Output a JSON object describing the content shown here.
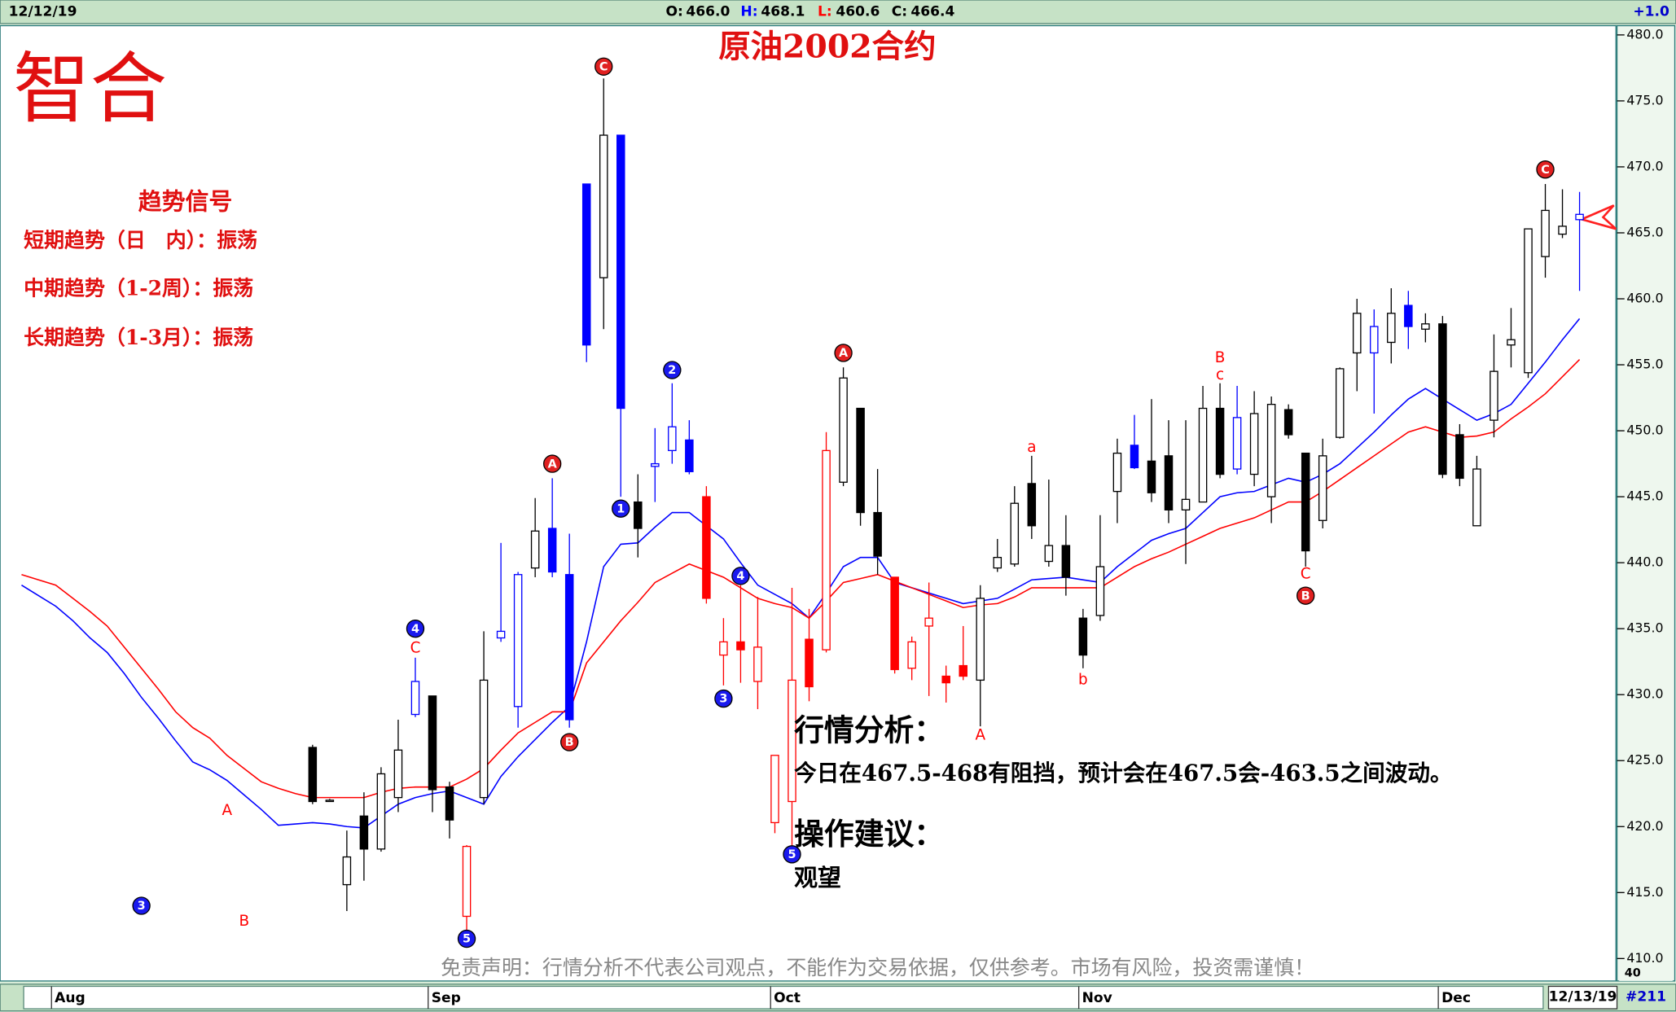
{
  "header": {
    "date": "12/12/19",
    "open_label": "O:",
    "open": "466.0",
    "high_label": "H:",
    "high": "468.1",
    "low_label": "L:",
    "low": "460.6",
    "close_label": "C:",
    "close": "466.4",
    "change": "+1.0"
  },
  "footer": {
    "date": "12/13/19",
    "bars": "#211",
    "corner": "40"
  },
  "logo": "智合",
  "trend_panel": {
    "title": "趋势信号",
    "rows": [
      "短期趋势（日　内）：振荡",
      "中期趋势（1-2周）：振荡",
      "长期趋势（1-3月）：振荡"
    ]
  },
  "analysis": {
    "heading": "行情分析：",
    "text": "今日在467.5-468有阻挡，预计会在467.5会-463.5之间波动。",
    "advice_heading": "操作建议：",
    "advice": "观望"
  },
  "disclaimer": "免责声明：行情分析不代表公司观点，不能作为交易依据，仅供参考。市场有风险，投资需谨慎！",
  "chart_data": {
    "type": "candlestick",
    "title": "原油2002合约",
    "categories": [
      null,
      null,
      "Aug",
      null,
      null,
      null,
      null,
      null,
      null,
      null,
      null,
      null,
      null,
      null,
      null,
      null,
      null,
      null,
      null,
      null,
      null,
      null,
      null,
      null,
      "Sep",
      null,
      null,
      null,
      null,
      null,
      null,
      null,
      null,
      null,
      null,
      null,
      null,
      null,
      null,
      null,
      null,
      null,
      null,
      null,
      "Oct",
      null,
      null,
      null,
      null,
      null,
      null,
      null,
      null,
      null,
      null,
      null,
      null,
      null,
      null,
      null,
      null,
      null,
      "Nov",
      null,
      null,
      null,
      null,
      null,
      null,
      null,
      null,
      null,
      null,
      null,
      null,
      null,
      null,
      null,
      null,
      null,
      null,
      null,
      null,
      "Dec",
      null,
      null,
      null,
      null,
      null,
      null,
      null,
      null
    ],
    "open": [
      null,
      null,
      null,
      null,
      null,
      null,
      null,
      null,
      null,
      null,
      null,
      null,
      null,
      null,
      null,
      null,
      null,
      426.0,
      422.0,
      415.6,
      420.8,
      418.3,
      422.2,
      428.5,
      429.9,
      423.0,
      413.2,
      422.2,
      434.3,
      429.1,
      439.6,
      442.6,
      439.1,
      468.7,
      461.6,
      472.4,
      444.6,
      447.3,
      448.5,
      449.3,
      445.0,
      433.0,
      434.0,
      431.0,
      420.3,
      421.9,
      434.2,
      433.4,
      446.1,
      451.7,
      443.8,
      438.9,
      432.0,
      435.2,
      431.4,
      432.2,
      431.1,
      439.6,
      439.9,
      446.0,
      440.1,
      441.3,
      435.8,
      436.0,
      445.4,
      448.9,
      447.7,
      448.1,
      444.0,
      444.6,
      451.7,
      447.1,
      446.7,
      445.0,
      451.6,
      448.3,
      443.2,
      449.5,
      455.9,
      455.9,
      456.7,
      459.5,
      457.7,
      458.1,
      449.7,
      442.8,
      450.8,
      456.5,
      454.4,
      463.2,
      464.9,
      466.0
    ],
    "high": [
      null,
      null,
      null,
      null,
      null,
      null,
      null,
      null,
      null,
      null,
      null,
      null,
      null,
      null,
      null,
      null,
      null,
      426.2,
      422.1,
      419.7,
      422.6,
      424.5,
      428.1,
      432.8,
      429.9,
      423.4,
      418.6,
      434.8,
      441.5,
      439.3,
      444.9,
      446.4,
      442.2,
      468.7,
      476.7,
      472.4,
      446.7,
      450.2,
      453.6,
      450.8,
      445.8,
      435.8,
      438.3,
      437.4,
      425.4,
      438.1,
      436.5,
      449.9,
      454.8,
      451.7,
      447.1,
      438.9,
      434.4,
      438.5,
      432.2,
      435.2,
      438.3,
      441.8,
      445.8,
      448.1,
      446.3,
      443.6,
      436.5,
      443.6,
      449.4,
      451.2,
      452.4,
      450.8,
      450.8,
      453.4,
      453.6,
      453.4,
      453.0,
      452.6,
      452.0,
      448.3,
      449.4,
      454.8,
      460.0,
      459.2,
      460.8,
      460.6,
      458.9,
      458.7,
      450.5,
      448.1,
      457.3,
      459.3,
      465.3,
      468.7,
      468.3,
      468.1
    ],
    "low": [
      null,
      null,
      null,
      null,
      null,
      null,
      null,
      null,
      null,
      null,
      null,
      null,
      null,
      null,
      null,
      null,
      null,
      421.7,
      421.9,
      413.6,
      415.9,
      418.1,
      421.1,
      428.3,
      421.1,
      419.1,
      412.1,
      421.7,
      434.0,
      427.5,
      438.9,
      438.9,
      427.5,
      455.2,
      457.7,
      445.0,
      440.4,
      444.6,
      447.5,
      446.7,
      436.9,
      430.7,
      430.9,
      428.9,
      419.5,
      418.1,
      429.5,
      433.2,
      445.8,
      442.8,
      439.1,
      431.6,
      431.1,
      429.9,
      429.4,
      431.1,
      427.6,
      439.3,
      439.7,
      441.8,
      439.7,
      437.5,
      432.0,
      435.6,
      443.0,
      447.1,
      444.6,
      443.0,
      439.9,
      444.6,
      446.4,
      446.7,
      445.8,
      443.0,
      449.4,
      439.7,
      442.6,
      449.4,
      453.0,
      451.3,
      455.1,
      456.2,
      456.7,
      446.4,
      445.8,
      442.8,
      449.5,
      454.8,
      454.0,
      461.6,
      464.6,
      460.6
    ],
    "close": [
      null,
      null,
      null,
      null,
      null,
      null,
      null,
      null,
      null,
      null,
      null,
      null,
      null,
      null,
      null,
      null,
      null,
      421.9,
      422.0,
      417.7,
      418.3,
      424.0,
      425.8,
      431.0,
      422.8,
      420.5,
      418.5,
      431.1,
      434.8,
      439.1,
      442.4,
      439.3,
      428.1,
      456.5,
      472.4,
      451.7,
      442.6,
      447.5,
      450.3,
      446.9,
      437.3,
      434.0,
      433.4,
      433.6,
      425.4,
      431.1,
      430.6,
      448.5,
      454.0,
      443.8,
      440.5,
      431.9,
      434.0,
      435.8,
      430.9,
      431.4,
      437.3,
      440.4,
      444.5,
      442.8,
      441.3,
      438.9,
      433.0,
      439.7,
      448.3,
      447.2,
      445.3,
      444.0,
      444.8,
      451.7,
      446.7,
      451.0,
      451.3,
      452.0,
      449.7,
      440.9,
      448.1,
      454.7,
      458.9,
      457.9,
      458.9,
      457.9,
      458.1,
      446.7,
      446.4,
      447.1,
      454.5,
      456.9,
      465.3,
      466.7,
      465.5,
      466.4
    ],
    "colors": [
      null,
      null,
      null,
      null,
      null,
      null,
      null,
      null,
      null,
      null,
      null,
      null,
      null,
      null,
      null,
      null,
      null,
      "#000000",
      "#000000",
      "#000000",
      "#000000",
      "#000000",
      "#000000",
      "#0000ff",
      "#000000",
      "#000000",
      "#ff0000",
      "#000000",
      "#0000ff",
      "#0000ff",
      "#000000",
      "#0000ff",
      "#0000ff",
      "#0000ff",
      "#000000",
      "#0000ff",
      "#000000",
      "#0000ff",
      "#0000ff",
      "#0000ff",
      "#ff0000",
      "#ff0000",
      "#ff0000",
      "#ff0000",
      "#ff0000",
      "#ff0000",
      "#ff0000",
      "#ff0000",
      "#000000",
      "#000000",
      "#000000",
      "#ff0000",
      "#ff0000",
      "#ff0000",
      "#ff0000",
      "#ff0000",
      "#000000",
      "#000000",
      "#000000",
      "#000000",
      "#000000",
      "#000000",
      "#000000",
      "#000000",
      "#000000",
      "#0000ff",
      "#000000",
      "#000000",
      "#000000",
      "#000000",
      "#000000",
      "#0000ff",
      "#000000",
      "#000000",
      "#000000",
      "#000000",
      "#000000",
      "#000000",
      "#000000",
      "#0000ff",
      "#000000",
      "#0000ff",
      "#000000",
      "#000000",
      "#000000",
      "#000000",
      "#000000",
      "#000000",
      "#000000",
      "#000000",
      "#000000",
      "#0000ff"
    ],
    "lines": [
      {
        "color": "#0000ff",
        "values": [
          438.3,
          437.5,
          436.7,
          435.6,
          434.3,
          433.2,
          431.6,
          429.8,
          428.2,
          426.5,
          424.9,
          424.3,
          423.5,
          422.4,
          421.3,
          420.1,
          420.2,
          420.3,
          420.2,
          420.0,
          419.9,
          420.8,
          421.7,
          422.2,
          422.5,
          422.7,
          422.2,
          421.7,
          423.8,
          425.3,
          426.6,
          427.9,
          429.1,
          434.0,
          439.7,
          441.4,
          441.5,
          442.7,
          443.8,
          443.8,
          442.8,
          441.8,
          440.0,
          438.3,
          437.6,
          436.9,
          435.8,
          437.7,
          439.7,
          440.4,
          440.4,
          438.5,
          438.1,
          437.7,
          437.3,
          436.9,
          437.1,
          437.3,
          438.0,
          438.7,
          438.8,
          438.9,
          438.7,
          438.5,
          439.7,
          440.7,
          441.7,
          442.2,
          442.6,
          443.8,
          445.0,
          445.3,
          445.4,
          445.9,
          446.4,
          446.1,
          446.7,
          447.5,
          448.7,
          449.9,
          451.2,
          452.4,
          453.2,
          452.4,
          451.6,
          450.8,
          451.3,
          452.0,
          453.6,
          455.2,
          456.9,
          458.5
        ]
      },
      {
        "color": "#ff0000",
        "values": [
          439.1,
          438.7,
          438.3,
          437.3,
          436.3,
          435.2,
          433.6,
          432.0,
          430.4,
          428.7,
          427.5,
          426.7,
          425.4,
          424.4,
          423.4,
          422.9,
          422.5,
          422.2,
          422.2,
          422.2,
          422.2,
          422.6,
          422.9,
          423.0,
          423.0,
          423.0,
          423.6,
          424.4,
          425.8,
          427.1,
          427.9,
          428.7,
          428.7,
          432.4,
          434.0,
          435.6,
          437.0,
          438.5,
          439.2,
          439.9,
          439.4,
          438.9,
          438.1,
          437.3,
          436.9,
          436.6,
          435.8,
          437.1,
          438.5,
          438.8,
          439.1,
          438.6,
          438.1,
          437.6,
          437.1,
          436.6,
          436.8,
          436.9,
          437.4,
          438.1,
          438.1,
          438.1,
          438.1,
          438.1,
          438.9,
          439.7,
          440.3,
          440.8,
          441.4,
          442.0,
          442.6,
          443.0,
          443.4,
          444.0,
          444.6,
          444.6,
          445.4,
          446.3,
          447.2,
          448.1,
          449.0,
          449.9,
          450.3,
          449.9,
          449.5,
          449.6,
          449.9,
          450.9,
          451.8,
          452.8,
          454.1,
          455.4
        ]
      }
    ],
    "annotations": [
      {
        "index": 7,
        "y": 414.0,
        "text": "3",
        "marker": "circle",
        "color": "#1a1aee"
      },
      {
        "index": 12,
        "y": 421.2,
        "text": "A",
        "marker": "letter",
        "color": "#ff0000"
      },
      {
        "index": 13,
        "y": 412.8,
        "text": "B",
        "marker": "letter",
        "color": "#ff0000"
      },
      {
        "index": 23,
        "y": 435.0,
        "text": "4",
        "marker": "circle",
        "color": "#1a1aee"
      },
      {
        "index": 23,
        "y": 433.5,
        "text": "C",
        "marker": "letter",
        "color": "#ff0000"
      },
      {
        "index": 26,
        "y": 411.5,
        "text": "5",
        "marker": "circle",
        "color": "#1a1aee"
      },
      {
        "index": 31,
        "y": 447.5,
        "text": "A",
        "marker": "circle",
        "color": "#e02020"
      },
      {
        "index": 32,
        "y": 426.4,
        "text": "B",
        "marker": "circle",
        "color": "#e02020"
      },
      {
        "index": 34,
        "y": 477.6,
        "text": "C",
        "marker": "circle",
        "color": "#e02020"
      },
      {
        "index": 35,
        "y": 444.1,
        "text": "1",
        "marker": "circle",
        "color": "#1a1aee"
      },
      {
        "index": 38,
        "y": 454.6,
        "text": "2",
        "marker": "circle",
        "color": "#1a1aee"
      },
      {
        "index": 41,
        "y": 429.7,
        "text": "3",
        "marker": "circle",
        "color": "#1a1aee"
      },
      {
        "index": 42,
        "y": 439.0,
        "text": "4",
        "marker": "circle",
        "color": "#1a1aee"
      },
      {
        "index": 45,
        "y": 417.9,
        "text": "5",
        "marker": "circle",
        "color": "#1a1aee"
      },
      {
        "index": 48,
        "y": 455.9,
        "text": "A",
        "marker": "circle",
        "color": "#e02020"
      },
      {
        "index": 56,
        "y": 426.9,
        "text": "A",
        "marker": "letter",
        "color": "#ff0000"
      },
      {
        "index": 59,
        "y": 448.7,
        "text": "a",
        "marker": "letter",
        "color": "#ff0000"
      },
      {
        "index": 62,
        "y": 431.1,
        "text": "b",
        "marker": "letter",
        "color": "#ff0000"
      },
      {
        "index": 70,
        "y": 455.5,
        "text": "B",
        "marker": "letter",
        "color": "#ff0000"
      },
      {
        "index": 70,
        "y": 454.2,
        "text": "c",
        "marker": "letter",
        "color": "#ff0000"
      },
      {
        "index": 75,
        "y": 439.1,
        "text": "C",
        "marker": "letter",
        "color": "#ff0000"
      },
      {
        "index": 75,
        "y": 437.5,
        "text": "B",
        "marker": "circle",
        "color": "#e02020"
      },
      {
        "index": 89,
        "y": 469.8,
        "text": "C",
        "marker": "circle",
        "color": "#e02020"
      }
    ],
    "ylim": [
      408.3,
      480.7
    ],
    "yticks": [
      {
        "value": 410,
        "label": "410.0"
      },
      {
        "value": 415,
        "label": "415.0"
      },
      {
        "value": 420,
        "label": "420.0"
      },
      {
        "value": 425,
        "label": "425.0"
      },
      {
        "value": 430,
        "label": "430.0"
      },
      {
        "value": 435,
        "label": "435.0"
      },
      {
        "value": 440,
        "label": "440.0"
      },
      {
        "value": 445,
        "label": "445.0"
      },
      {
        "value": 450,
        "label": "450.0"
      },
      {
        "value": 455,
        "label": "455.0"
      },
      {
        "value": 460,
        "label": "460.0"
      },
      {
        "value": 465,
        "label": "465.0"
      },
      {
        "value": 470,
        "label": "470.0"
      },
      {
        "value": 475,
        "label": "475.0"
      },
      {
        "value": 480,
        "label": "480.0"
      }
    ]
  }
}
